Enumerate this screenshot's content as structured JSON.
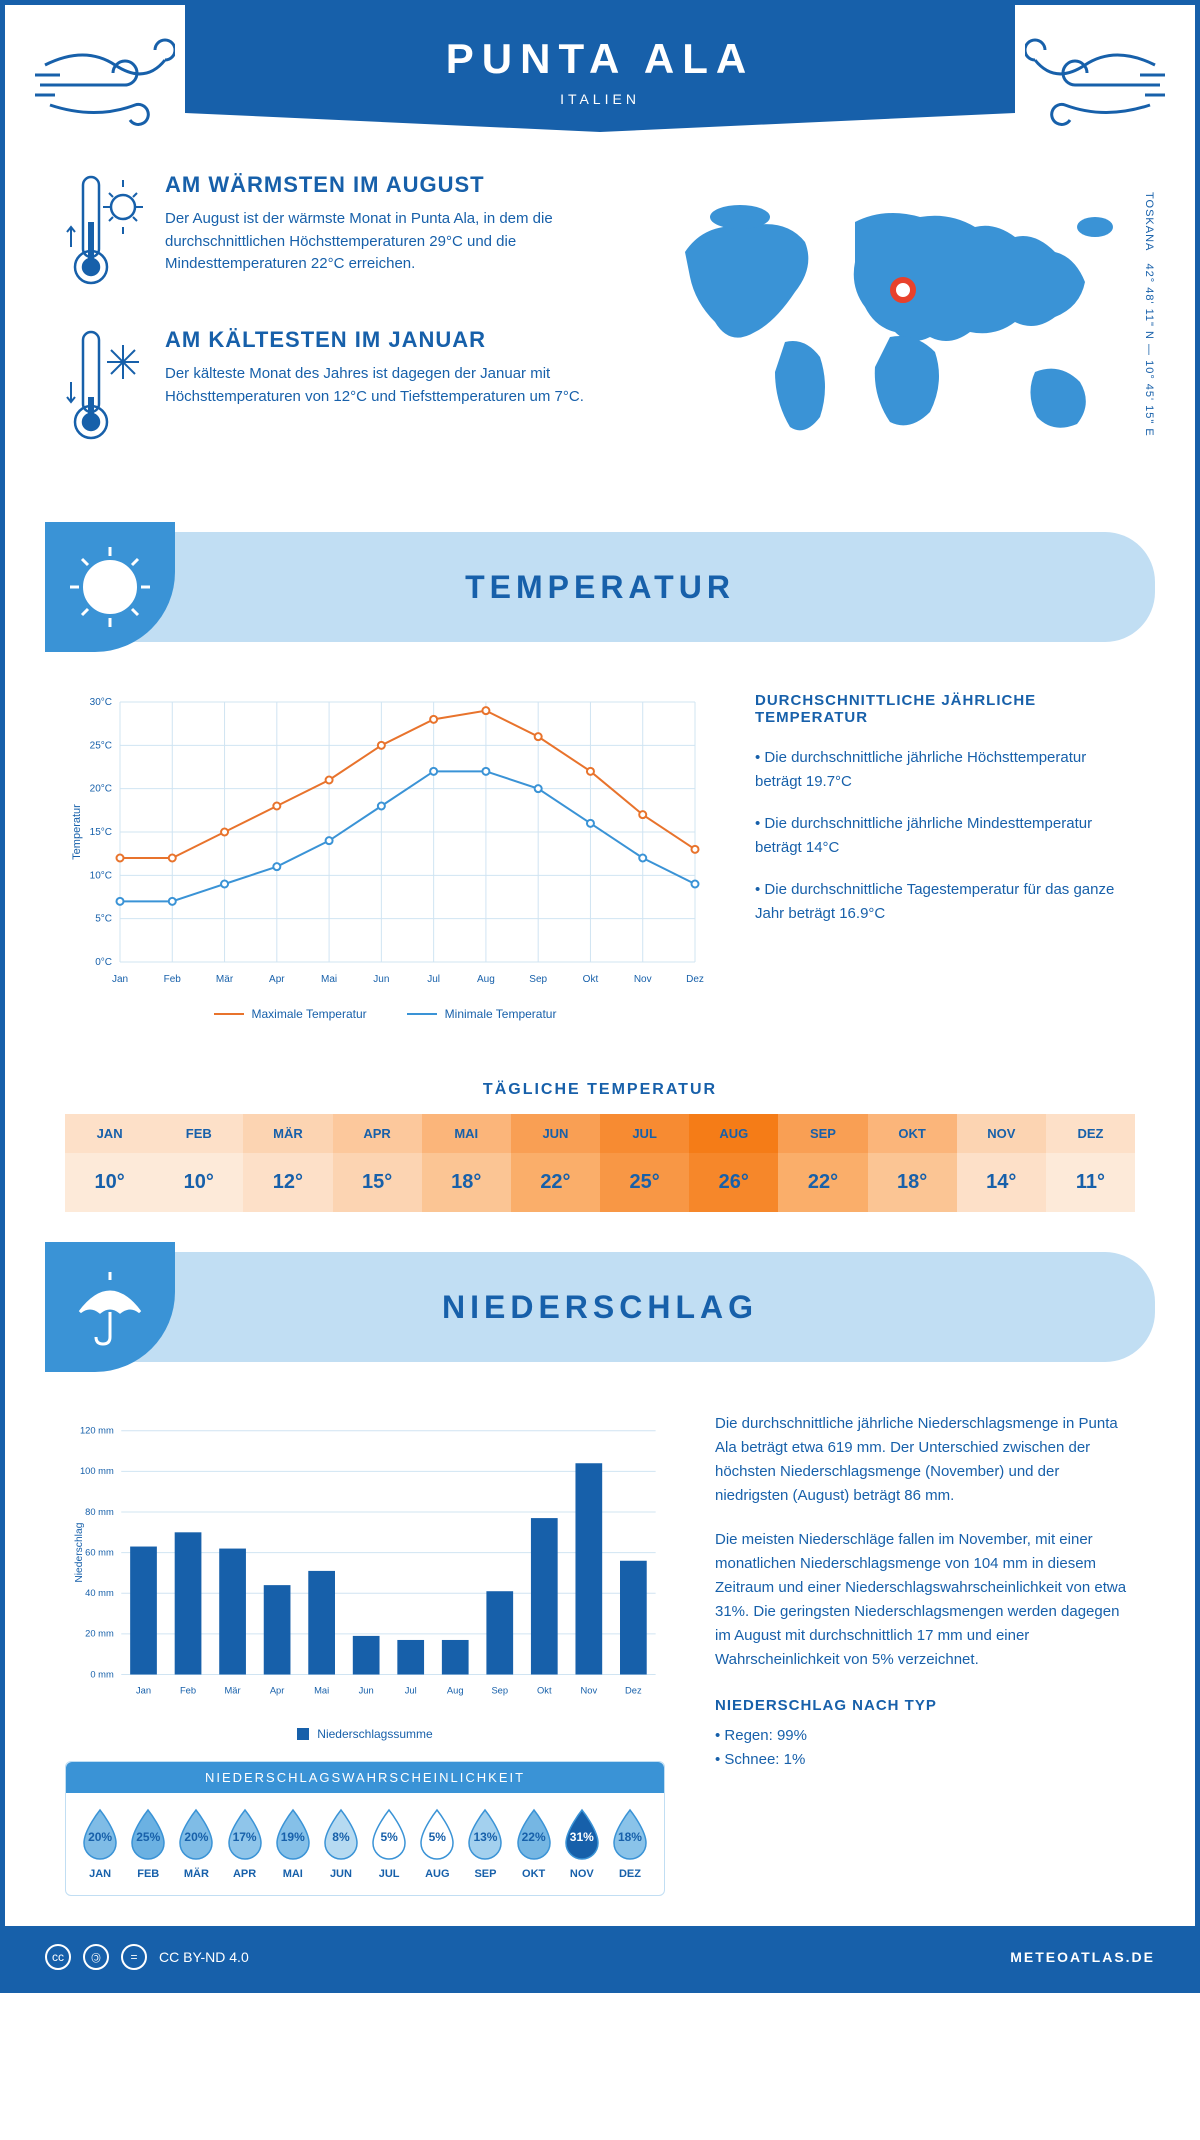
{
  "header": {
    "title": "PUNTA ALA",
    "subtitle": "ITALIEN"
  },
  "coords": {
    "lat": "42° 48' 11\" N",
    "lon": "10° 45' 15\" E",
    "region": "TOSKANA"
  },
  "warmest": {
    "title": "AM WÄRMSTEN IM AUGUST",
    "text": "Der August ist der wärmste Monat in Punta Ala, in dem die durchschnittlichen Höchsttemperaturen 29°C und die Mindesttemperaturen 22°C erreichen."
  },
  "coldest": {
    "title": "AM KÄLTESTEN IM JANUAR",
    "text": "Der kälteste Monat des Jahres ist dagegen der Januar mit Höchsttemperaturen von 12°C und Tiefsttemperaturen um 7°C."
  },
  "sections": {
    "temp": "TEMPERATUR",
    "precip": "NIEDERSCHLAG"
  },
  "temp_chart": {
    "months": [
      "Jan",
      "Feb",
      "Mär",
      "Apr",
      "Mai",
      "Jun",
      "Jul",
      "Aug",
      "Sep",
      "Okt",
      "Nov",
      "Dez"
    ],
    "max": [
      12,
      12,
      15,
      18,
      21,
      25,
      28,
      29,
      26,
      22,
      17,
      13
    ],
    "min": [
      7,
      7,
      9,
      11,
      14,
      18,
      22,
      22,
      20,
      16,
      12,
      9
    ],
    "ylim": [
      0,
      30
    ],
    "ytick_step": 5,
    "ylabel": "Temperatur",
    "colors": {
      "max": "#e8732c",
      "min": "#3a93d6",
      "grid": "#d0e4f2",
      "axis": "#1760aa"
    },
    "legend": {
      "max": "Maximale Temperatur",
      "min": "Minimale Temperatur"
    }
  },
  "temp_info": {
    "title": "DURCHSCHNITTLICHE JÄHRLICHE TEMPERATUR",
    "b1": "• Die durchschnittliche jährliche Höchsttemperatur beträgt 19.7°C",
    "b2": "• Die durchschnittliche jährliche Mindesttemperatur beträgt 14°C",
    "b3": "• Die durchschnittliche Tagestemperatur für das ganze Jahr beträgt 16.9°C"
  },
  "daily": {
    "title": "TÄGLICHE TEMPERATUR",
    "months": [
      "JAN",
      "FEB",
      "MÄR",
      "APR",
      "MAI",
      "JUN",
      "JUL",
      "AUG",
      "SEP",
      "OKT",
      "NOV",
      "DEZ"
    ],
    "vals": [
      "10°",
      "10°",
      "12°",
      "15°",
      "18°",
      "22°",
      "25°",
      "26°",
      "22°",
      "18°",
      "14°",
      "11°"
    ],
    "head_colors": [
      "#fde0c8",
      "#fde0c8",
      "#fcd4b2",
      "#fcc89c",
      "#fbb57a",
      "#f99f54",
      "#f78b32",
      "#f57c17",
      "#f99f54",
      "#fbb57a",
      "#fcd4b2",
      "#fde0c8"
    ],
    "val_colors": [
      "#fdead9",
      "#fdead9",
      "#fde0c8",
      "#fcd4b2",
      "#fbc594",
      "#faae6a",
      "#f89745",
      "#f6872a",
      "#faae6a",
      "#fbc594",
      "#fde0c8",
      "#fdead9"
    ]
  },
  "precip_chart": {
    "months": [
      "Jan",
      "Feb",
      "Mär",
      "Apr",
      "Mai",
      "Jun",
      "Jul",
      "Aug",
      "Sep",
      "Okt",
      "Nov",
      "Dez"
    ],
    "values": [
      63,
      70,
      62,
      44,
      51,
      19,
      17,
      17,
      41,
      77,
      104,
      56
    ],
    "ylim": [
      0,
      120
    ],
    "ytick_step": 20,
    "ylabel": "Niederschlag",
    "bar_color": "#1760aa",
    "grid": "#d0e4f2",
    "legend": "Niederschlagssumme"
  },
  "precip_text": {
    "p1": "Die durchschnittliche jährliche Niederschlagsmenge in Punta Ala beträgt etwa 619 mm. Der Unterschied zwischen der höchsten Niederschlagsmenge (November) und der niedrigsten (August) beträgt 86 mm.",
    "p2": "Die meisten Niederschläge fallen im November, mit einer monatlichen Niederschlagsmenge von 104 mm in diesem Zeitraum und einer Niederschlagswahrscheinlichkeit von etwa 31%. Die geringsten Niederschlagsmengen werden dagegen im August mit durchschnittlich 17 mm und einer Wahrscheinlichkeit von 5% verzeichnet.",
    "type_title": "NIEDERSCHLAG NACH TYP",
    "type1": "• Regen: 99%",
    "type2": "• Schnee: 1%"
  },
  "prob": {
    "title": "NIEDERSCHLAGSWAHRSCHEINLICHKEIT",
    "months": [
      "JAN",
      "FEB",
      "MÄR",
      "APR",
      "MAI",
      "JUN",
      "JUL",
      "AUG",
      "SEP",
      "OKT",
      "NOV",
      "DEZ"
    ],
    "pct": [
      "20%",
      "25%",
      "20%",
      "17%",
      "19%",
      "8%",
      "5%",
      "5%",
      "13%",
      "22%",
      "31%",
      "18%"
    ],
    "fills": [
      "#7fbce6",
      "#6bb1e2",
      "#7fbce6",
      "#8fc5ea",
      "#85c0e8",
      "#b6daf1",
      "#ffffff",
      "#ffffff",
      "#a3d0ee",
      "#75b6e3",
      "#1760aa",
      "#8ac3e9"
    ],
    "text_colors": [
      "#1760aa",
      "#1760aa",
      "#1760aa",
      "#1760aa",
      "#1760aa",
      "#1760aa",
      "#1760aa",
      "#1760aa",
      "#1760aa",
      "#1760aa",
      "#ffffff",
      "#1760aa"
    ]
  },
  "footer": {
    "license": "CC BY-ND 4.0",
    "site": "METEOATLAS.DE"
  }
}
